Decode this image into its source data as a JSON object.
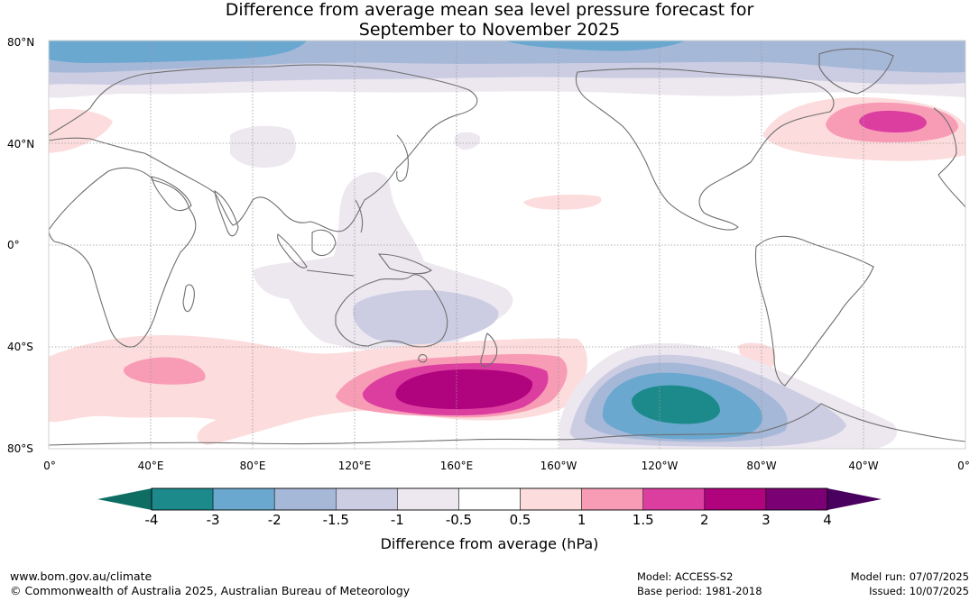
{
  "title": {
    "line1": "Difference from average mean sea level pressure forecast for",
    "line2": "September to November 2025"
  },
  "map": {
    "lat_labels": [
      "80°N",
      "40°N",
      "0°",
      "40°S",
      "80°S"
    ],
    "lon_labels": [
      "0°",
      "40°E",
      "80°E",
      "120°E",
      "160°E",
      "160°W",
      "120°W",
      "80°W",
      "40°W",
      "0°"
    ],
    "anomaly_regions": [
      {
        "region": "Arctic",
        "anomaly_hPa": -2.0
      },
      {
        "region": "North Atlantic",
        "anomaly_hPa": 2.0
      },
      {
        "region": "Southern Ocean south of Australia/New Zealand",
        "anomaly_hPa": 3.0
      },
      {
        "region": "Southern Ocean south-east Pacific",
        "anomaly_hPa": -3.0
      },
      {
        "region": "Southern Indian Ocean",
        "anomaly_hPa": 1.0
      },
      {
        "region": "Australia",
        "anomaly_hPa": -1.5
      }
    ]
  },
  "colorbar": {
    "title": "Difference from average (hPa)",
    "ticks": [
      "-4",
      "-3",
      "-2",
      "-1.5",
      "-1",
      "-0.5",
      "0.5",
      "1",
      "1.5",
      "2",
      "3",
      "4"
    ],
    "colors": [
      "#1c8a8a",
      "#6aa8d0",
      "#a6b8d8",
      "#cccde3",
      "#ede8f0",
      "#ffffff",
      "#fcdcdc",
      "#f89cb6",
      "#dc3ea0",
      "#b0047e",
      "#7b0074"
    ],
    "under_color": "#0f6e64",
    "over_color": "#4a005e"
  },
  "footer": {
    "url": "www.bom.gov.au/climate",
    "copyright": "© Commonwealth of Australia 2025, Australian Bureau of Meteorology",
    "model": "Model: ACCESS-S2",
    "base_period": "Base period: 1981-2018",
    "model_run": "Model run: 07/07/2025",
    "issued": "Issued: 10/07/2025"
  }
}
